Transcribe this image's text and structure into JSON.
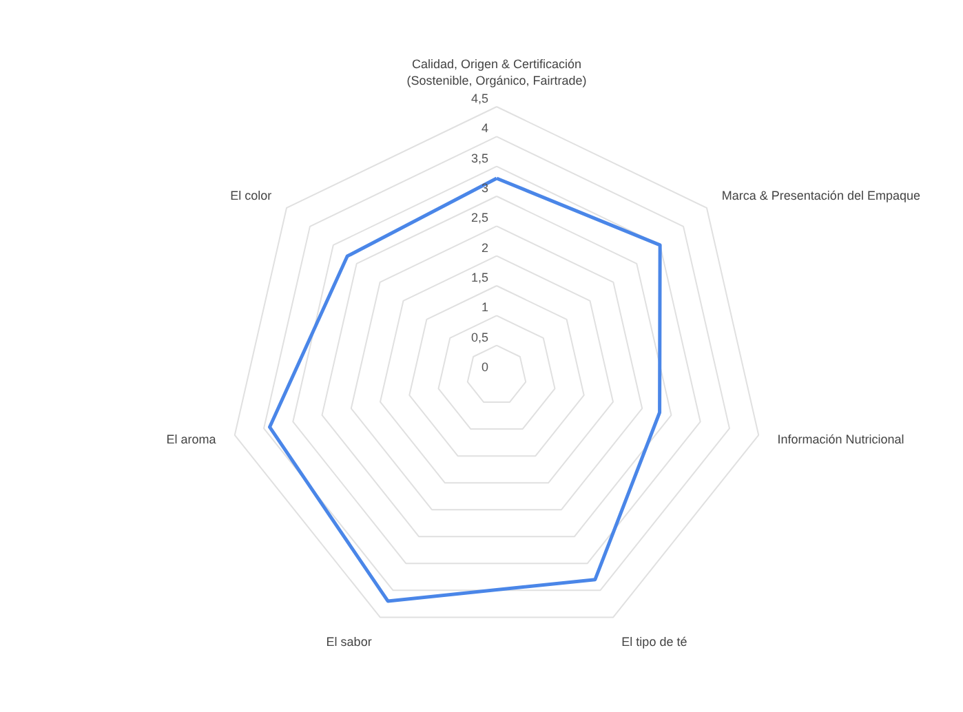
{
  "chart_data": {
    "type": "radar",
    "categories": [
      "Calidad, Origen & Certificación\n(Sostenible, Orgánico, Fairtrade)",
      "Marca & Presentación del Empaque",
      "Información Nutricional",
      "El tipo de té",
      "El sabor",
      "El aroma",
      "El color"
    ],
    "series": [
      {
        "color": "#4a86e8",
        "values": [
          3.3,
          3.5,
          2.8,
          3.8,
          4.2,
          3.9,
          3.2
        ]
      }
    ],
    "ylim": [
      0,
      4.5
    ],
    "yticks": [
      0,
      {
        "value": 0.5,
        "label": "0,5"
      },
      1,
      {
        "value": 1.5,
        "label": "1,5"
      },
      2,
      {
        "value": 2.5,
        "label": "2,5"
      },
      3,
      {
        "value": 3.5,
        "label": "3,5"
      },
      4,
      {
        "value": 4.5,
        "label": "4,5"
      }
    ],
    "grid": true
  }
}
